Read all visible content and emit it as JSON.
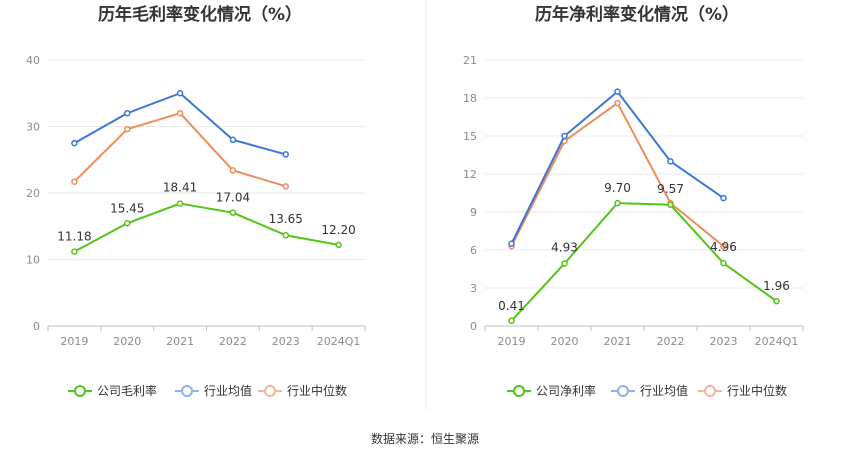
{
  "source_label": "数据来源：恒生聚源",
  "chart_data": [
    {
      "type": "line",
      "title": "历年毛利率变化情况（%）",
      "categories": [
        "2019",
        "2020",
        "2021",
        "2022",
        "2023",
        "2024Q1"
      ],
      "ylim": [
        0,
        40
      ],
      "yticks": [
        0,
        10,
        20,
        30,
        40
      ],
      "grid": true,
      "legend_position": "bottom",
      "series": [
        {
          "name": "公司毛利率",
          "color": "#52c41a",
          "labeled": true,
          "values": [
            11.18,
            15.45,
            18.41,
            17.04,
            13.65,
            12.2
          ],
          "labels": [
            "11.18",
            "15.45",
            "18.41",
            "17.04",
            "13.65",
            "12.20"
          ]
        },
        {
          "name": "行业均值",
          "color": "#3a77d8",
          "legend_color": "#8fb3ec",
          "labeled": false,
          "values": [
            27.5,
            32.0,
            35.0,
            28.0,
            25.8,
            null
          ]
        },
        {
          "name": "行业中位数",
          "color": "#f08c5a",
          "legend_color": "#f5b59a",
          "labeled": false,
          "values": [
            21.7,
            29.6,
            32.0,
            23.4,
            21.0,
            null
          ]
        }
      ]
    },
    {
      "type": "line",
      "title": "历年净利率变化情况（%）",
      "categories": [
        "2019",
        "2020",
        "2021",
        "2022",
        "2023",
        "2024Q1"
      ],
      "ylim": [
        0,
        21
      ],
      "yticks": [
        0,
        3,
        6,
        9,
        12,
        15,
        18,
        21
      ],
      "grid": true,
      "legend_position": "bottom",
      "series": [
        {
          "name": "公司净利率",
          "color": "#52c41a",
          "labeled": true,
          "values": [
            0.41,
            4.93,
            9.7,
            9.57,
            4.96,
            1.96
          ],
          "labels": [
            "0.41",
            "4.93",
            "9.70",
            "9.57",
            "4.96",
            "1.96"
          ]
        },
        {
          "name": "行业均值",
          "color": "#3a77d8",
          "legend_color": "#8fb3ec",
          "labeled": false,
          "values": [
            6.5,
            15.0,
            18.5,
            13.0,
            10.1,
            null
          ]
        },
        {
          "name": "行业中位数",
          "color": "#f08c5a",
          "legend_color": "#f5b59a",
          "labeled": false,
          "values": [
            6.3,
            14.6,
            17.6,
            9.7,
            6.3,
            null
          ]
        }
      ]
    }
  ]
}
